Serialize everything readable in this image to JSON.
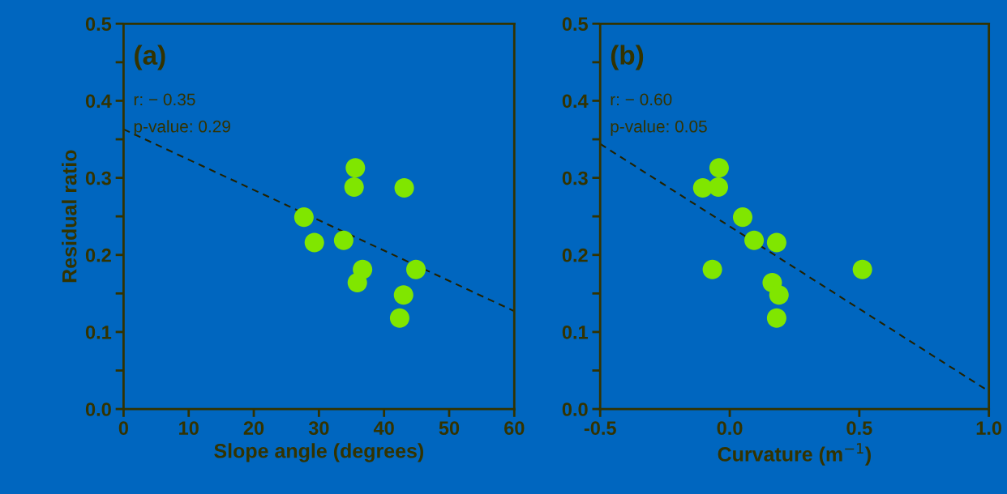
{
  "chart_data": [
    {
      "type": "scatter",
      "xlabel": "Slope angle (degrees)",
      "ylabel": "Residual ratio",
      "annotations": [
        "(a)",
        "r: − 0.35",
        "p-value: 0.29"
      ],
      "xlim": [
        0,
        60
      ],
      "xticks": [
        0,
        10,
        20,
        30,
        40,
        50,
        60
      ],
      "ylim": [
        0,
        0.5
      ],
      "yticks": [
        {
          "value": 0,
          "label": "0.0"
        },
        {
          "value": 0.05,
          "label": null
        },
        {
          "value": 0.1,
          "label": "0.1"
        },
        {
          "value": 0.15,
          "label": null
        },
        {
          "value": 0.2,
          "label": "0.2"
        },
        {
          "value": 0.25,
          "label": null
        },
        {
          "value": 0.3,
          "label": "0.3"
        },
        {
          "value": 0.35,
          "label": null
        },
        {
          "value": 0.4,
          "label": "0.4"
        },
        {
          "value": 0.45,
          "label": null
        },
        {
          "value": 0.5,
          "label": "0.5"
        }
      ],
      "grid": false,
      "legend": false,
      "series": [
        {
          "color": "#80e600",
          "marker": "circle",
          "x": [
            35.6,
            35.4,
            43.1,
            27.7,
            29.3,
            33.8,
            36.7,
            35.9,
            44.9,
            43.0,
            42.4
          ],
          "values": [
            0.313,
            0.288,
            0.287,
            0.249,
            0.216,
            0.219,
            0.181,
            0.164,
            0.181,
            0.148,
            0.118
          ]
        },
        {
          "type": "line",
          "color": "#222200",
          "line_style": "dashed",
          "x": [
            0,
            60
          ],
          "values": [
            0.363,
            0.127
          ]
        }
      ]
    },
    {
      "type": "scatter",
      "xlabel": "Curvature (m$^{−1}$)",
      "annotations": [
        "(b)",
        "r: − 0.60",
        "p-value: 0.05"
      ],
      "xlim": [
        -0.5,
        1.0
      ],
      "xticks": [
        {
          "value": -0.5,
          "label": "-0.5"
        },
        {
          "value": 0,
          "label": "0.0"
        },
        0.5,
        {
          "value": 1.0,
          "label": "1.0"
        }
      ],
      "ylim": [
        0,
        0.5
      ],
      "yticks": [
        {
          "value": 0,
          "label": "0.0"
        },
        {
          "value": 0.05,
          "label": null
        },
        {
          "value": 0.1,
          "label": "0.1"
        },
        {
          "value": 0.15,
          "label": null
        },
        {
          "value": 0.2,
          "label": "0.2"
        },
        {
          "value": 0.25,
          "label": null
        },
        {
          "value": 0.3,
          "label": "0.3"
        },
        {
          "value": 0.35,
          "label": null
        },
        {
          "value": 0.4,
          "label": "0.4"
        },
        {
          "value": 0.45,
          "label": null
        },
        {
          "value": 0.5,
          "label": "0.5"
        }
      ],
      "grid": false,
      "legend": false,
      "series": [
        {
          "color": "#80e600",
          "marker": "circle",
          "x": [
            -0.041,
            -0.044,
            -0.104,
            0.05,
            0.094,
            0.181,
            -0.067,
            0.512,
            0.164,
            0.19,
            0.181
          ],
          "values": [
            0.313,
            0.288,
            0.287,
            0.249,
            0.219,
            0.216,
            0.181,
            0.181,
            0.164,
            0.148,
            0.118
          ]
        },
        {
          "type": "line",
          "color": "#222200",
          "line_style": "dashed",
          "x": [
            -0.5,
            1.0
          ],
          "values": [
            0.344,
            0.023
          ]
        }
      ]
    }
  ]
}
